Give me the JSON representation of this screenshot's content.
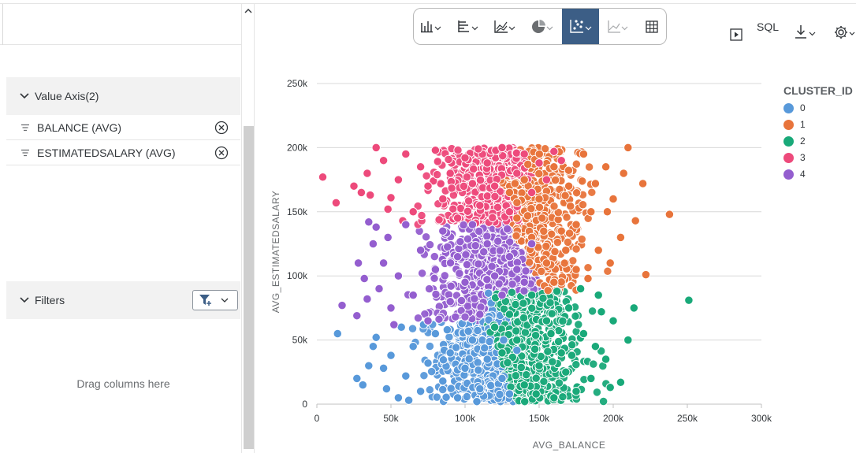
{
  "left_panel": {
    "value_axis": {
      "title": "Value Axis(2)",
      "items": [
        {
          "label": "BALANCE (AVG)"
        },
        {
          "label": "ESTIMATEDSALARY (AVG)"
        }
      ]
    },
    "filters": {
      "title": "Filters",
      "drop_hint": "Drag columns here"
    }
  },
  "toolbar": {
    "chart_types": [
      "bar-chart-icon",
      "horizontal-bar-icon",
      "line-chart-icon",
      "pie-chart-icon",
      "scatter-chart-icon",
      "area-chart-icon",
      "table-icon"
    ],
    "selected": "scatter-chart-icon",
    "sql_label": "SQL"
  },
  "colors": {
    "cluster0": "#5899DA",
    "cluster1": "#E8743B",
    "cluster2": "#19A979",
    "cluster3": "#ED4A7B",
    "cluster4": "#945ECF",
    "selected_tool": "#3c5e86"
  },
  "chart_data": {
    "type": "scatter",
    "xlabel": "AVG_BALANCE",
    "ylabel": "AVG_ESTIMATEDSALARY",
    "xlim": [
      0,
      300000
    ],
    "ylim": [
      0,
      250000
    ],
    "x_ticks": [
      "0",
      "50k",
      "100k",
      "150k",
      "200k",
      "250k",
      "300k"
    ],
    "y_ticks": [
      "0",
      "50k",
      "100k",
      "150k",
      "200k",
      "250k"
    ],
    "grid": true,
    "legend": {
      "title": "CLUSTER_ID",
      "position": "right",
      "entries": [
        "0",
        "1",
        "2",
        "3",
        "4"
      ]
    },
    "series": [
      {
        "name": "0",
        "approx_region": {
          "x": [
            25000,
            140000
          ],
          "y": [
            0,
            65000
          ]
        },
        "points": [
          [
            14000,
            55000
          ],
          [
            27000,
            20000
          ],
          [
            31000,
            15000
          ],
          [
            35000,
            30000
          ],
          [
            38000,
            45000
          ],
          [
            40000,
            52000
          ],
          [
            45000,
            28000
          ],
          [
            47000,
            12000
          ],
          [
            50000,
            38000
          ],
          [
            55000,
            5000
          ],
          [
            57000,
            60000
          ],
          [
            60000,
            22000
          ],
          [
            65000,
            45000
          ],
          [
            70000,
            10000
          ],
          [
            75000,
            32000
          ],
          [
            80000,
            55000
          ],
          [
            85000,
            18000
          ],
          [
            90000,
            40000
          ],
          [
            95000,
            5000
          ],
          [
            100000,
            28000
          ],
          [
            105000,
            50000
          ],
          [
            110000,
            12000
          ],
          [
            115000,
            35000
          ],
          [
            120000,
            60000
          ],
          [
            125000,
            20000
          ],
          [
            130000,
            8000
          ],
          [
            135000,
            42000
          ],
          [
            72000,
            62000
          ],
          [
            88000,
            58000
          ],
          [
            62000,
            3000
          ],
          [
            108000,
            2000
          ],
          [
            126000,
            50000
          ]
        ]
      },
      {
        "name": "1",
        "approx_region": {
          "x": [
            120000,
            240000
          ],
          "y": [
            88000,
            200000
          ]
        },
        "points": [
          [
            238000,
            148000
          ],
          [
            222000,
            101000
          ],
          [
            220000,
            172000
          ],
          [
            210000,
            200000
          ],
          [
            215000,
            143000
          ],
          [
            205000,
            130000
          ],
          [
            200000,
            160000
          ],
          [
            195000,
            185000
          ],
          [
            190000,
            120000
          ],
          [
            185000,
            150000
          ],
          [
            180000,
            195000
          ],
          [
            175000,
            105000
          ],
          [
            170000,
            170000
          ],
          [
            165000,
            135000
          ],
          [
            160000,
            185000
          ],
          [
            155000,
            110000
          ],
          [
            150000,
            160000
          ],
          [
            145000,
            130000
          ],
          [
            140000,
            175000
          ],
          [
            135000,
            145000
          ],
          [
            130000,
            165000
          ],
          [
            160000,
            95000
          ],
          [
            175000,
            140000
          ],
          [
            188000,
            172000
          ],
          [
            198000,
            110000
          ],
          [
            207000,
            180000
          ],
          [
            168000,
            120000
          ],
          [
            152000,
            145000
          ],
          [
            183000,
            98000
          ],
          [
            196000,
            150000
          ]
        ]
      },
      {
        "name": "2",
        "approx_region": {
          "x": [
            118000,
            215000
          ],
          "y": [
            0,
            95000
          ]
        },
        "points": [
          [
            251000,
            81000
          ],
          [
            214000,
            75000
          ],
          [
            210000,
            50000
          ],
          [
            205000,
            17000
          ],
          [
            200000,
            65000
          ],
          [
            195000,
            35000
          ],
          [
            190000,
            85000
          ],
          [
            185000,
            20000
          ],
          [
            180000,
            55000
          ],
          [
            175000,
            10000
          ],
          [
            170000,
            75000
          ],
          [
            165000,
            40000
          ],
          [
            160000,
            5000
          ],
          [
            155000,
            65000
          ],
          [
            150000,
            30000
          ],
          [
            145000,
            85000
          ],
          [
            140000,
            15000
          ],
          [
            135000,
            50000
          ],
          [
            130000,
            70000
          ],
          [
            125000,
            40000
          ],
          [
            120000,
            60000
          ],
          [
            198000,
            13000
          ],
          [
            188000,
            45000
          ],
          [
            178000,
            90000
          ],
          [
            168000,
            25000
          ],
          [
            158000,
            55000
          ],
          [
            148000,
            8000
          ],
          [
            192000,
            72000
          ],
          [
            172000,
            38000
          ],
          [
            162000,
            88000
          ]
        ]
      },
      {
        "name": "3",
        "approx_region": {
          "x": [
            3000,
            170000
          ],
          "y": [
            135000,
            200000
          ]
        },
        "points": [
          [
            4000,
            177000
          ],
          [
            13000,
            157000
          ],
          [
            25000,
            170000
          ],
          [
            30000,
            165000
          ],
          [
            34000,
            180000
          ],
          [
            40000,
            200000
          ],
          [
            45000,
            190000
          ],
          [
            50000,
            161000
          ],
          [
            55000,
            175000
          ],
          [
            60000,
            195000
          ],
          [
            65000,
            150000
          ],
          [
            70000,
            185000
          ],
          [
            75000,
            170000
          ],
          [
            80000,
            198000
          ],
          [
            85000,
            160000
          ],
          [
            90000,
            180000
          ],
          [
            95000,
            145000
          ],
          [
            100000,
            192000
          ],
          [
            105000,
            172000
          ],
          [
            110000,
            155000
          ],
          [
            115000,
            188000
          ],
          [
            120000,
            170000
          ],
          [
            125000,
            200000
          ],
          [
            130000,
            150000
          ],
          [
            135000,
            180000
          ],
          [
            140000,
            195000
          ],
          [
            145000,
            165000
          ],
          [
            150000,
            188000
          ],
          [
            155000,
            175000
          ],
          [
            160000,
            197000
          ],
          [
            165000,
            190000
          ],
          [
            48000,
            152000
          ],
          [
            58000,
            143000
          ],
          [
            36000,
            163000
          ]
        ]
      },
      {
        "name": "4",
        "approx_region": {
          "x": [
            20000,
            150000
          ],
          "y": [
            60000,
            145000
          ]
        },
        "points": [
          [
            17000,
            77000
          ],
          [
            27000,
            69000
          ],
          [
            28000,
            110000
          ],
          [
            32000,
            98000
          ],
          [
            35000,
            142000
          ],
          [
            38000,
            125000
          ],
          [
            42000,
            90000
          ],
          [
            45000,
            110000
          ],
          [
            48000,
            130000
          ],
          [
            50000,
            75000
          ],
          [
            55000,
            100000
          ],
          [
            60000,
            140000
          ],
          [
            65000,
            85000
          ],
          [
            70000,
            120000
          ],
          [
            75000,
            65000
          ],
          [
            80000,
            105000
          ],
          [
            85000,
            135000
          ],
          [
            90000,
            80000
          ],
          [
            95000,
            115000
          ],
          [
            100000,
            95000
          ],
          [
            105000,
            140000
          ],
          [
            110000,
            70000
          ],
          [
            115000,
            125000
          ],
          [
            120000,
            100000
          ],
          [
            125000,
            85000
          ],
          [
            130000,
            115000
          ],
          [
            135000,
            105000
          ],
          [
            140000,
            95000
          ],
          [
            145000,
            125000
          ],
          [
            40000,
            138000
          ],
          [
            52000,
            62000
          ],
          [
            34000,
            82000
          ]
        ]
      }
    ]
  }
}
